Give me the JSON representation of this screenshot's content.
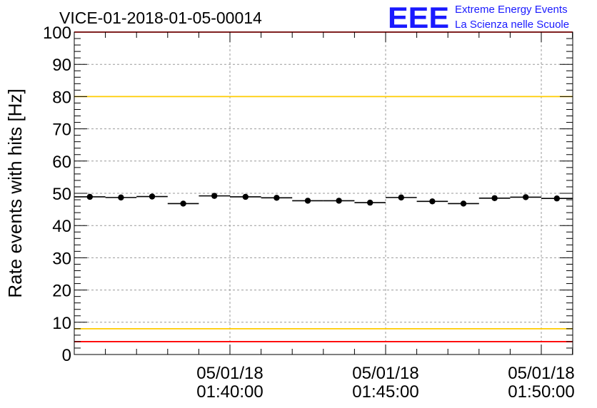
{
  "run_title": "VICE-01-2018-01-05-00014",
  "logo": {
    "letters": "EEE",
    "line1": "Extreme Energy Events",
    "line2": "La Scienza nelle Scuole",
    "color": "#1a1aff"
  },
  "chart_data": {
    "type": "scatter",
    "title": "VICE-01-2018-01-05-00014",
    "xlabel": "",
    "ylabel": "Rate events with hits [Hz]",
    "xlim_minutes": [
      0,
      16.5
    ],
    "ylim": [
      0,
      100
    ],
    "y_ticks": [
      0,
      10,
      20,
      30,
      40,
      50,
      60,
      70,
      80,
      90,
      100
    ],
    "x_ticks": [
      {
        "minute": 5,
        "date": "05/01/18",
        "time": "01:40:00"
      },
      {
        "minute": 10,
        "date": "05/01/18",
        "time": "01:45:00"
      },
      {
        "minute": 15,
        "date": "05/01/18",
        "time": "01:50:00"
      }
    ],
    "grid": true,
    "bin_width_minutes": 1,
    "series": [
      {
        "name": "rate",
        "x_minutes": [
          0.5,
          1.5,
          2.5,
          3.5,
          4.5,
          5.5,
          6.5,
          7.5,
          8.5,
          9.5,
          10.5,
          11.5,
          12.5,
          13.5,
          14.5,
          15.5
        ],
        "values": [
          48.9,
          48.7,
          49.0,
          46.8,
          49.2,
          48.9,
          48.6,
          47.7,
          47.7,
          47.1,
          48.7,
          47.5,
          46.8,
          48.5,
          48.8,
          48.4
        ],
        "errors": [
          0.3,
          0.3,
          0.3,
          0.3,
          0.3,
          0.3,
          0.3,
          0.3,
          0.3,
          0.3,
          0.3,
          0.3,
          0.3,
          0.3,
          0.3,
          0.3
        ]
      }
    ],
    "reference_lines": [
      {
        "name": "upper-red",
        "value": 100,
        "color": "#ff0000"
      },
      {
        "name": "upper-yellow",
        "value": 80,
        "color": "#ffcc00"
      },
      {
        "name": "lower-yellow",
        "value": 8,
        "color": "#ffcc00"
      },
      {
        "name": "lower-red",
        "value": 4,
        "color": "#ff0000"
      }
    ]
  }
}
